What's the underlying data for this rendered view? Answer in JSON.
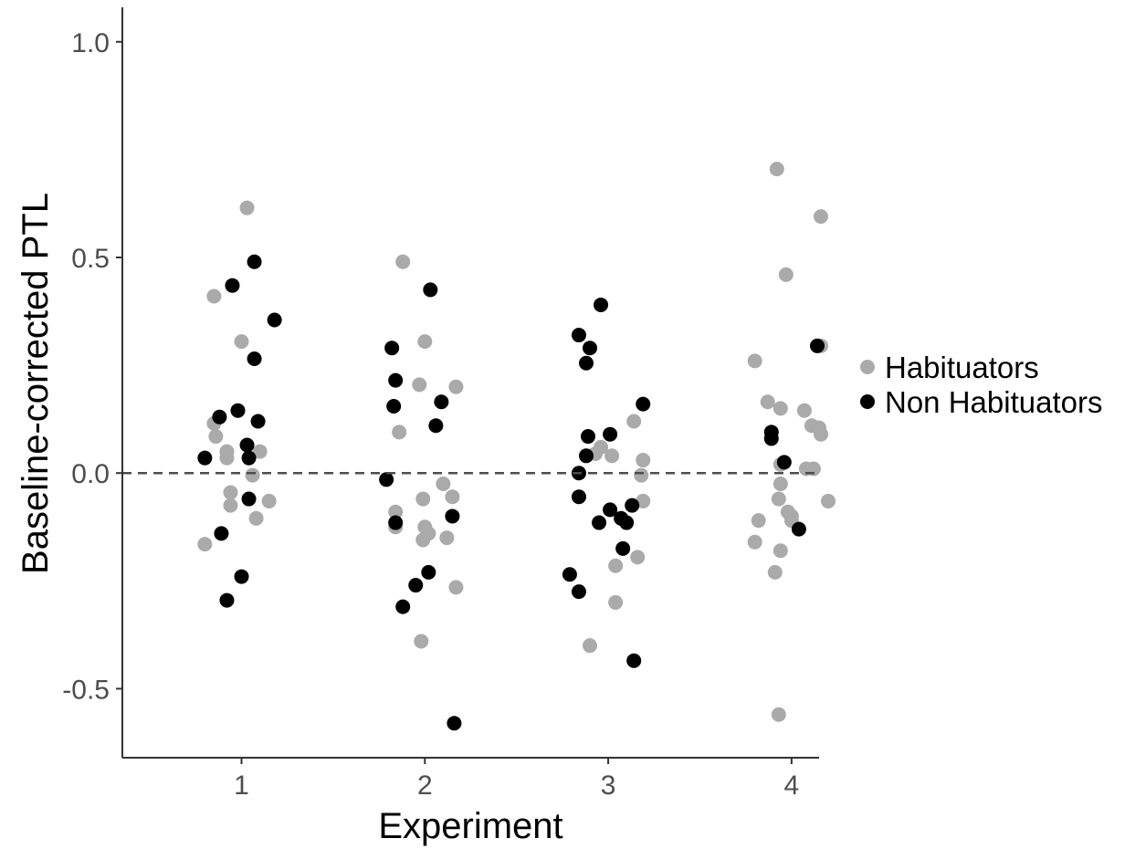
{
  "chart_data": {
    "type": "scatter",
    "title": "",
    "xlabel": "Experiment",
    "ylabel": "Baseline-corrected PTL",
    "categories": [
      "1",
      "2",
      "3",
      "4"
    ],
    "x_range": [
      0.35,
      4.15
    ],
    "ylim": [
      -0.66,
      1.08
    ],
    "yticks": [
      1.0,
      0.5,
      0.0,
      -0.5
    ],
    "ytick_labels": [
      "1.0",
      "0.5",
      "0.0",
      "-0.5"
    ],
    "reference_line": {
      "y": 0.0,
      "style": "dashed"
    },
    "grid": false,
    "legend": {
      "position": "right"
    },
    "series": [
      {
        "name": "Habituators",
        "color": "#aaaaaa",
        "points": [
          [
            1.03,
            0.615
          ],
          [
            0.85,
            0.41
          ],
          [
            1.0,
            0.305
          ],
          [
            0.85,
            0.115
          ],
          [
            0.86,
            0.085
          ],
          [
            0.92,
            0.05
          ],
          [
            0.92,
            0.035
          ],
          [
            1.1,
            0.05
          ],
          [
            1.06,
            -0.005
          ],
          [
            0.94,
            -0.045
          ],
          [
            0.94,
            -0.075
          ],
          [
            1.15,
            -0.065
          ],
          [
            1.08,
            -0.105
          ],
          [
            0.8,
            -0.165
          ],
          [
            1.88,
            0.49
          ],
          [
            2.0,
            0.305
          ],
          [
            1.97,
            0.205
          ],
          [
            2.17,
            0.2
          ],
          [
            1.86,
            0.095
          ],
          [
            2.1,
            -0.025
          ],
          [
            2.15,
            -0.055
          ],
          [
            1.99,
            -0.06
          ],
          [
            1.84,
            -0.09
          ],
          [
            1.84,
            -0.125
          ],
          [
            2.0,
            -0.125
          ],
          [
            2.02,
            -0.14
          ],
          [
            1.99,
            -0.155
          ],
          [
            2.12,
            -0.15
          ],
          [
            2.17,
            -0.265
          ],
          [
            1.98,
            -0.39
          ],
          [
            3.14,
            0.12
          ],
          [
            2.96,
            0.06
          ],
          [
            3.02,
            0.04
          ],
          [
            3.19,
            0.03
          ],
          [
            2.93,
            0.045
          ],
          [
            3.18,
            -0.005
          ],
          [
            3.19,
            -0.065
          ],
          [
            3.16,
            -0.195
          ],
          [
            3.04,
            -0.215
          ],
          [
            3.04,
            -0.3
          ],
          [
            2.9,
            -0.4
          ],
          [
            3.92,
            0.705
          ],
          [
            4.16,
            0.595
          ],
          [
            3.97,
            0.46
          ],
          [
            3.8,
            0.26
          ],
          [
            4.16,
            0.295
          ],
          [
            3.87,
            0.165
          ],
          [
            3.94,
            0.15
          ],
          [
            4.07,
            0.145
          ],
          [
            4.11,
            0.11
          ],
          [
            4.15,
            0.105
          ],
          [
            4.16,
            0.09
          ],
          [
            3.94,
            0.02
          ],
          [
            4.08,
            0.01
          ],
          [
            4.12,
            0.01
          ],
          [
            3.94,
            -0.025
          ],
          [
            3.93,
            -0.06
          ],
          [
            4.2,
            -0.065
          ],
          [
            3.98,
            -0.09
          ],
          [
            4.0,
            -0.1
          ],
          [
            4.0,
            -0.11
          ],
          [
            3.82,
            -0.11
          ],
          [
            3.8,
            -0.16
          ],
          [
            3.94,
            -0.18
          ],
          [
            3.91,
            -0.23
          ],
          [
            3.93,
            -0.56
          ]
        ]
      },
      {
        "name": "Non Habituators",
        "color": "#000000",
        "points": [
          [
            1.07,
            0.49
          ],
          [
            0.95,
            0.435
          ],
          [
            1.18,
            0.355
          ],
          [
            1.07,
            0.265
          ],
          [
            0.88,
            0.13
          ],
          [
            0.98,
            0.145
          ],
          [
            1.09,
            0.12
          ],
          [
            1.03,
            0.065
          ],
          [
            0.8,
            0.035
          ],
          [
            1.04,
            0.035
          ],
          [
            1.04,
            -0.06
          ],
          [
            0.89,
            -0.14
          ],
          [
            1.0,
            -0.24
          ],
          [
            0.92,
            -0.295
          ],
          [
            2.03,
            0.425
          ],
          [
            1.82,
            0.29
          ],
          [
            1.84,
            0.215
          ],
          [
            1.83,
            0.155
          ],
          [
            2.09,
            0.165
          ],
          [
            2.06,
            0.11
          ],
          [
            1.79,
            -0.015
          ],
          [
            1.84,
            -0.115
          ],
          [
            2.15,
            -0.1
          ],
          [
            2.02,
            -0.23
          ],
          [
            1.95,
            -0.26
          ],
          [
            1.88,
            -0.31
          ],
          [
            2.16,
            -0.58
          ],
          [
            2.96,
            0.39
          ],
          [
            2.84,
            0.32
          ],
          [
            2.9,
            0.29
          ],
          [
            2.88,
            0.255
          ],
          [
            3.19,
            0.16
          ],
          [
            2.89,
            0.085
          ],
          [
            3.01,
            0.09
          ],
          [
            2.88,
            0.04
          ],
          [
            2.84,
            0.0
          ],
          [
            2.84,
            -0.055
          ],
          [
            3.01,
            -0.085
          ],
          [
            3.13,
            -0.075
          ],
          [
            3.07,
            -0.105
          ],
          [
            3.1,
            -0.115
          ],
          [
            2.95,
            -0.115
          ],
          [
            3.08,
            -0.175
          ],
          [
            2.79,
            -0.235
          ],
          [
            2.84,
            -0.275
          ],
          [
            3.14,
            -0.435
          ],
          [
            4.14,
            0.295
          ],
          [
            3.89,
            0.095
          ],
          [
            3.89,
            0.08
          ],
          [
            3.96,
            0.025
          ],
          [
            4.04,
            -0.13
          ]
        ]
      }
    ]
  }
}
